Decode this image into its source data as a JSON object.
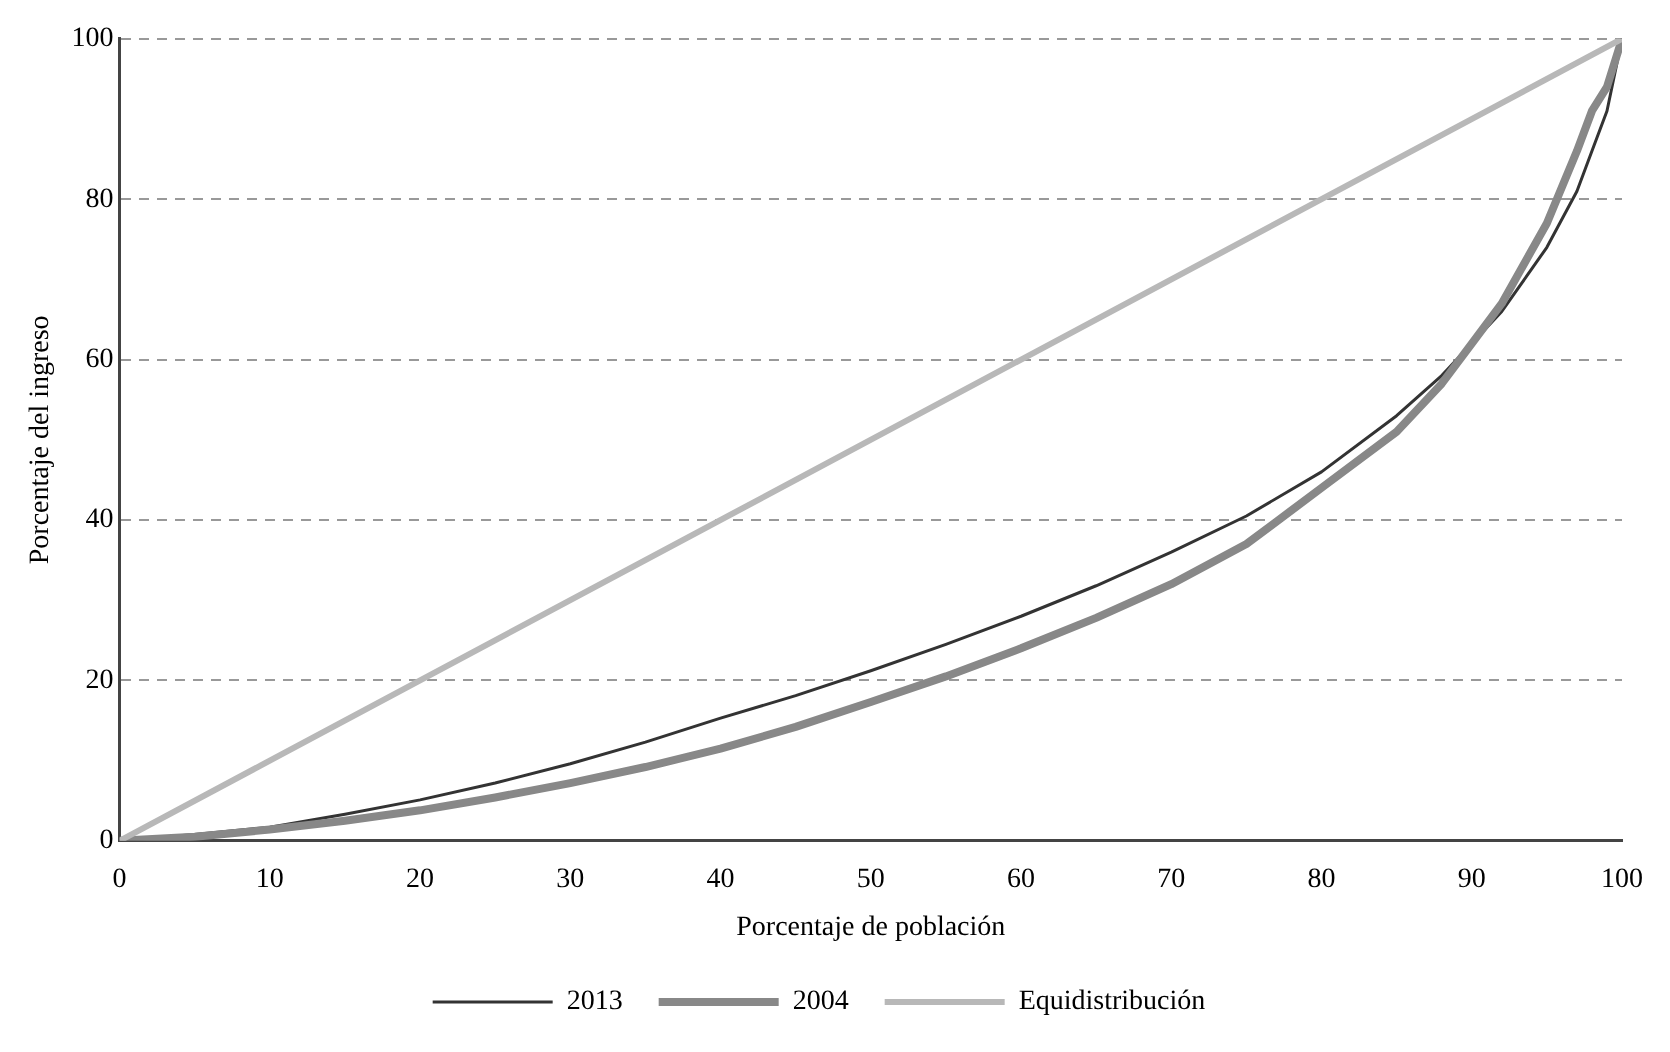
{
  "chart_data": {
    "type": "line",
    "xlabel": "Porcentaje de población",
    "ylabel": "Porcentaje del ingreso",
    "x": [
      0,
      5,
      10,
      15,
      20,
      25,
      30,
      35,
      40,
      45,
      50,
      55,
      60,
      65,
      70,
      75,
      80,
      85,
      88,
      90,
      92,
      95,
      97,
      98,
      99,
      100
    ],
    "series": [
      {
        "name": "2013",
        "color": "#333333",
        "values": [
          0,
          0.8,
          1.7,
          3.3,
          5.1,
          7.2,
          9.6,
          12.3,
          15.3,
          18.1,
          21.2,
          24.5,
          28,
          31.8,
          36,
          40.5,
          46,
          53,
          58,
          62,
          66,
          74,
          81,
          86,
          91,
          100
        ]
      },
      {
        "name": "2004",
        "color": "#888888",
        "values": [
          0,
          0.5,
          1.4,
          2.5,
          3.8,
          5.4,
          7.2,
          9.2,
          11.5,
          14.2,
          17.3,
          20.5,
          24,
          27.8,
          32,
          37,
          44,
          51,
          57,
          62,
          67,
          77,
          86,
          91,
          94,
          100
        ]
      },
      {
        "name": "Equidistribución",
        "color": "#b8b8b8",
        "x": [
          0,
          100
        ],
        "values": [
          0,
          100
        ]
      }
    ],
    "xlim": [
      0,
      100
    ],
    "xticks": [
      0,
      10,
      20,
      30,
      40,
      50,
      60,
      70,
      80,
      90,
      100
    ],
    "ylim": [
      0,
      100
    ],
    "yticks": [
      0,
      20,
      40,
      60,
      80,
      100
    ],
    "grid": "y",
    "legend": "bottom",
    "marker": "none",
    "line_style": "solid"
  }
}
